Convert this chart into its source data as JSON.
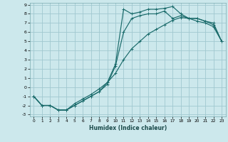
{
  "xlabel": "Humidex (Indice chaleur)",
  "bg_color": "#cce8ec",
  "grid_color": "#a0c8d0",
  "line_color": "#1a6b6b",
  "xlim": [
    -0.5,
    23.5
  ],
  "ylim": [
    -3.2,
    9.2
  ],
  "xticks": [
    0,
    1,
    2,
    3,
    4,
    5,
    6,
    7,
    8,
    9,
    10,
    11,
    12,
    13,
    14,
    15,
    16,
    17,
    18,
    19,
    20,
    21,
    22,
    23
  ],
  "yticks": [
    -3,
    -2,
    -1,
    0,
    1,
    2,
    3,
    4,
    5,
    6,
    7,
    8,
    9
  ],
  "line1_x": [
    0,
    1,
    2,
    3,
    4,
    5,
    6,
    7,
    8,
    9,
    10,
    11,
    12,
    13,
    14,
    15,
    16,
    17,
    18,
    19,
    20,
    21,
    22,
    23
  ],
  "line1_y": [
    -1,
    -2,
    -2,
    -2.5,
    -2.5,
    -2,
    -1.5,
    -1,
    -0.5,
    0.5,
    2.5,
    8.5,
    8.0,
    8.2,
    8.5,
    8.5,
    8.6,
    8.8,
    8.0,
    7.5,
    7.2,
    7.0,
    6.6,
    5.0
  ],
  "line2_x": [
    0,
    1,
    2,
    3,
    4,
    5,
    6,
    7,
    8,
    9,
    10,
    11,
    12,
    13,
    14,
    15,
    16,
    17,
    18,
    19,
    20,
    21,
    22,
    23
  ],
  "line2_y": [
    -1,
    -2,
    -2,
    -2.5,
    -2.5,
    -2,
    -1.5,
    -1,
    -0.5,
    0.3,
    2.3,
    6.0,
    7.5,
    7.8,
    8.0,
    8.0,
    8.3,
    7.5,
    7.8,
    7.5,
    7.5,
    7.2,
    6.8,
    5.0
  ],
  "line3_x": [
    0,
    1,
    2,
    3,
    4,
    5,
    6,
    7,
    8,
    9,
    10,
    11,
    12,
    13,
    14,
    15,
    16,
    17,
    18,
    19,
    20,
    21,
    22,
    23
  ],
  "line3_y": [
    -1,
    -2,
    -2,
    -2.5,
    -2.5,
    -1.8,
    -1.3,
    -0.8,
    -0.2,
    0.5,
    1.5,
    3.0,
    4.2,
    5.0,
    5.8,
    6.3,
    6.8,
    7.3,
    7.6,
    7.5,
    7.5,
    7.2,
    7.0,
    5.0
  ]
}
